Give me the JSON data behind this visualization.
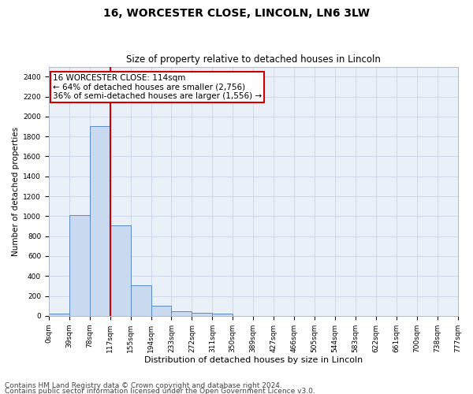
{
  "title": "16, WORCESTER CLOSE, LINCOLN, LN6 3LW",
  "subtitle": "Size of property relative to detached houses in Lincoln",
  "xlabel": "Distribution of detached houses by size in Lincoln",
  "ylabel": "Number of detached properties",
  "bin_labels": [
    "0sqm",
    "39sqm",
    "78sqm",
    "117sqm",
    "155sqm",
    "194sqm",
    "233sqm",
    "272sqm",
    "311sqm",
    "350sqm",
    "389sqm",
    "427sqm",
    "466sqm",
    "505sqm",
    "544sqm",
    "583sqm",
    "622sqm",
    "661sqm",
    "700sqm",
    "738sqm",
    "777sqm"
  ],
  "bar_values": [
    20,
    1010,
    1900,
    910,
    310,
    105,
    50,
    30,
    20,
    0,
    0,
    0,
    0,
    0,
    0,
    0,
    0,
    0,
    0,
    0
  ],
  "bar_color": "#c8d9f0",
  "bar_edge_color": "#5b8bc5",
  "vline_x_index": 3,
  "annotation_text": "16 WORCESTER CLOSE: 114sqm\n← 64% of detached houses are smaller (2,756)\n36% of semi-detached houses are larger (1,556) →",
  "annotation_box_color": "#ffffff",
  "annotation_box_edge_color": "#cc0000",
  "vline_color": "#cc0000",
  "ylim": [
    0,
    2500
  ],
  "yticks": [
    0,
    200,
    400,
    600,
    800,
    1000,
    1200,
    1400,
    1600,
    1800,
    2000,
    2200,
    2400
  ],
  "footer_line1": "Contains HM Land Registry data © Crown copyright and database right 2024.",
  "footer_line2": "Contains public sector information licensed under the Open Government Licence v3.0.",
  "background_color": "#ffffff",
  "plot_bg_color": "#eaf0f8",
  "grid_color": "#c8d4e8",
  "title_fontsize": 10,
  "subtitle_fontsize": 8.5,
  "xlabel_fontsize": 8,
  "ylabel_fontsize": 7.5,
  "tick_fontsize": 6.5,
  "annotation_fontsize": 7.5,
  "footer_fontsize": 6.5
}
